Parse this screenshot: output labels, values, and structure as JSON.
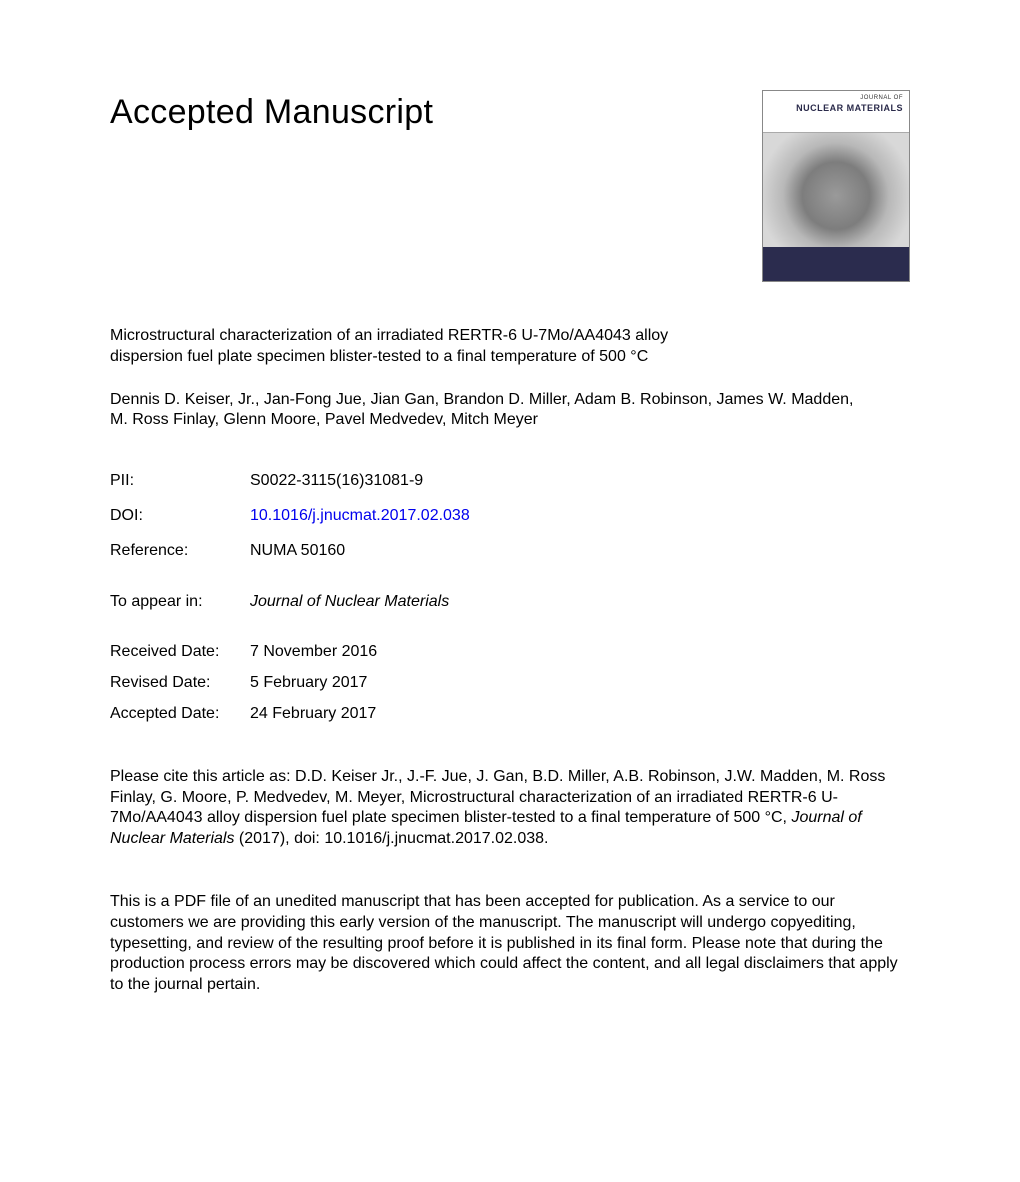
{
  "header": {
    "title": "Accepted Manuscript"
  },
  "cover": {
    "journal_over": "JOURNAL OF",
    "journal_name": "NUCLEAR MATERIALS",
    "bg_top": "#ffffff",
    "bg_bot": "#2b2c4e"
  },
  "article": {
    "title": "Microstructural characterization of an irradiated RERTR-6 U-7Mo/AA4043 alloy dispersion fuel plate specimen blister-tested to a final temperature of 500 °C",
    "authors": "Dennis D. Keiser, Jr., Jan-Fong Jue, Jian Gan, Brandon D. Miller, Adam B. Robinson, James W. Madden, M. Ross Finlay, Glenn Moore, Pavel Medvedev, Mitch Meyer"
  },
  "meta": {
    "pii_label": "PII:",
    "pii_value": "S0022-3115(16)31081-9",
    "doi_label": "DOI:",
    "doi_value": "10.1016/j.jnucmat.2017.02.038",
    "ref_label": "Reference:",
    "ref_value": "NUMA 50160",
    "appear_label": "To appear in:",
    "appear_value": "Journal of Nuclear Materials",
    "received_label": "Received Date:",
    "received_value": "7 November 2016",
    "revised_label": "Revised Date:",
    "revised_value": "5 February 2017",
    "accepted_label": "Accepted Date:",
    "accepted_value": "24 February 2017"
  },
  "citation": {
    "prefix": "Please cite this article as: D.D. Keiser Jr., J.-F. Jue, J. Gan, B.D. Miller, A.B. Robinson, J.W. Madden, M. Ross Finlay, G. Moore, P. Medvedev, M. Meyer, Microstructural characterization of an irradiated RERTR-6 U-7Mo/AA4043 alloy dispersion fuel plate specimen blister-tested to a final temperature of 500 °C, ",
    "journal": "Journal of Nuclear Materials",
    "suffix": " (2017), doi: 10.1016/j.jnucmat.2017.02.038."
  },
  "disclaimer": "This is a PDF file of an unedited manuscript that has been accepted for publication. As a service to our customers we are providing this early version of the manuscript. The manuscript will undergo copyediting, typesetting, and review of the resulting proof before it is published in its final form. Please note that during the production process errors may be discovered which could affect the content, and all legal disclaimers that apply to the journal pertain.",
  "colors": {
    "text": "#000000",
    "link": "#0000ee",
    "bg": "#ffffff"
  },
  "typography": {
    "title_fontsize": 34,
    "body_fontsize": 16,
    "font_family": "Arial, Helvetica, sans-serif"
  }
}
